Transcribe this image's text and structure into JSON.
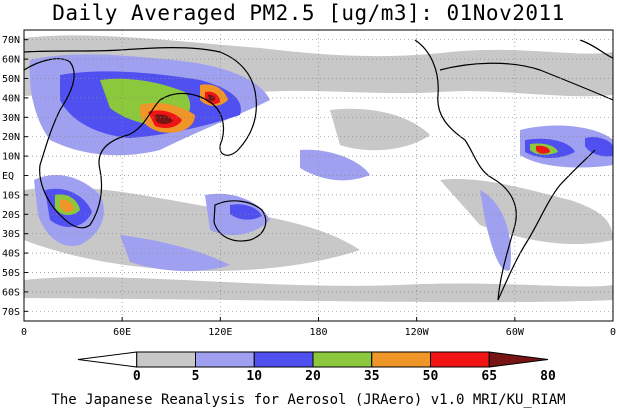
{
  "title": "Daily Averaged PM2.5 [ug/m3]: 01Nov2011",
  "credit": "The Japanese Reanalysis for Aerosol (JRAero) v1.0 MRI/KU_RIAM",
  "lat_labels": [
    "70N",
    "60N",
    "50N",
    "40N",
    "30N",
    "20N",
    "10N",
    "EQ",
    "10S",
    "20S",
    "30S",
    "40S",
    "50S",
    "60S",
    "70S"
  ],
  "lat_values": [
    70,
    60,
    50,
    40,
    30,
    20,
    10,
    0,
    -10,
    -20,
    -30,
    -40,
    -50,
    -60,
    -70
  ],
  "lon_labels": [
    "0",
    "60E",
    "120E",
    "180",
    "120W",
    "60W",
    "0"
  ],
  "lon_values": [
    0,
    60,
    120,
    180,
    240,
    300,
    360
  ],
  "colorbar": {
    "levels": [
      "0",
      "5",
      "10",
      "20",
      "35",
      "50",
      "65",
      "80"
    ],
    "colors": [
      "#ffffff",
      "#c8c8c8",
      "#a0a0f0",
      "#5050f0",
      "#8cc83c",
      "#f09628",
      "#f01414",
      "#781414"
    ]
  },
  "legend_colors": {
    "land_outline": "#000000",
    "grid": "#888888"
  }
}
